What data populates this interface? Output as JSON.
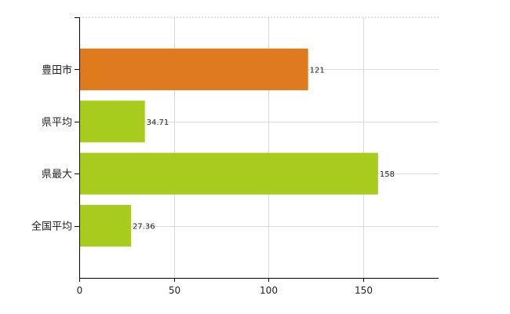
{
  "chart_data": {
    "type": "bar",
    "orientation": "horizontal",
    "categories": [
      "豊田市",
      "県平均",
      "県最大",
      "全国平均"
    ],
    "values": [
      121,
      34.71,
      158,
      27.36
    ],
    "value_labels": [
      "121",
      "34.71",
      "158",
      "27.36"
    ],
    "colors": [
      "#e07a1f",
      "#a8cc1d",
      "#a8cc1d",
      "#a8cc1d"
    ],
    "xlim": [
      0,
      190
    ],
    "xticks": [
      0,
      50,
      100,
      150
    ],
    "grid": true,
    "title": "",
    "xlabel": "",
    "ylabel": ""
  }
}
